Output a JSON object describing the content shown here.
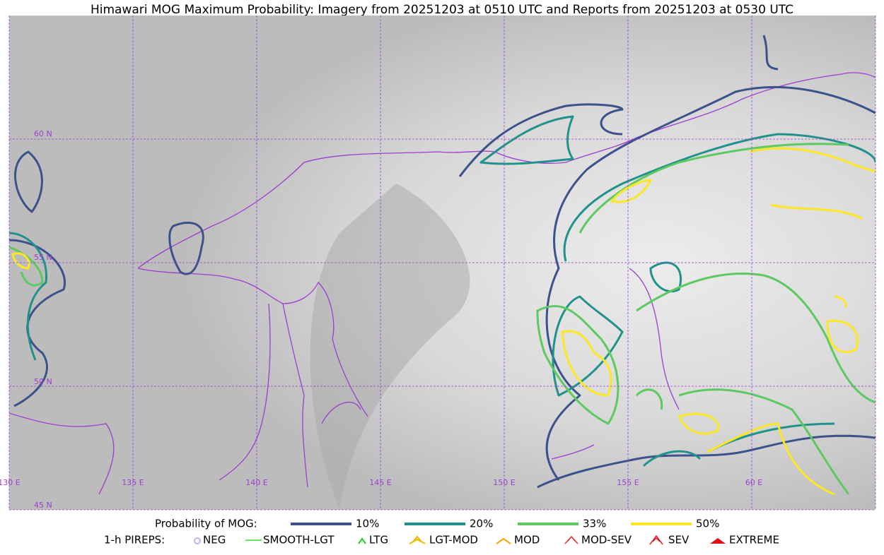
{
  "header": {
    "title": "Himawari MOG Maximum Probability: Imagery from 20251203 at 0510 UTC and Reports from 20251203 at 0530 UTC"
  },
  "map": {
    "lat_labels": [
      "60 N",
      "55 N",
      "50 N",
      "45 N"
    ],
    "lon_labels": [
      "130 E",
      "135 E",
      "140 E",
      "145 E",
      "150 E",
      "155 E",
      "60 E"
    ]
  },
  "legend": {
    "label": "Probability of MOG:",
    "items": [
      {
        "label": "10%",
        "color": "#3b528b"
      },
      {
        "label": "20%",
        "color": "#21918c"
      },
      {
        "label": "33%",
        "color": "#5ec962"
      },
      {
        "label": "50%",
        "color": "#fde725"
      }
    ]
  },
  "pireps": {
    "label": "1-h PIREPS:",
    "items": [
      {
        "label": "NEG",
        "color": "#b8b8f0"
      },
      {
        "label": "SMOOTH-LGT",
        "color": "#33dd33"
      },
      {
        "label": "LTG",
        "color": "#22cc22"
      },
      {
        "label": "LGT-MOD",
        "color": "#f5b800"
      },
      {
        "label": "MOD",
        "color": "#f5a800"
      },
      {
        "label": "MOD-SEV",
        "color": "#e03030"
      },
      {
        "label": "SEV",
        "color": "#e02020"
      },
      {
        "label": "EXTREME",
        "color": "#e01010"
      }
    ]
  }
}
